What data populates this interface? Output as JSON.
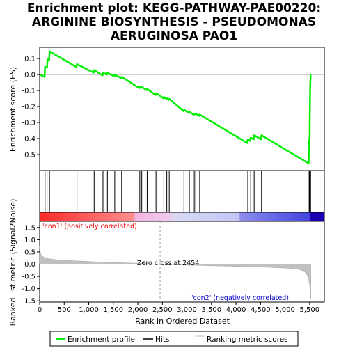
{
  "chart_data": {
    "type": "line",
    "title_lines": [
      "Enrichment plot: KEGG-PATHWAY-PAE00220:",
      "ARGININE BIOSYNTHESIS - PSEUDOMONAS",
      "AERUGINOSA PAO1"
    ],
    "xlabel": "Rank in Ordered Dataset",
    "ylabel_top": "Enrichment score (ES)",
    "ylabel_bottom": "Ranked list metric (Signal2Noise)",
    "xlim": [
      0,
      5800
    ],
    "x_ticks": [
      0,
      500,
      1000,
      1500,
      2000,
      2500,
      3000,
      3500,
      4000,
      4500,
      5000,
      5500
    ],
    "x_tick_labels": [
      "0",
      "500",
      "1,000",
      "1,500",
      "2,000",
      "2,500",
      "3,000",
      "3,500",
      "4,000",
      "4,500",
      "5,000",
      "5,500"
    ],
    "es_ylim": [
      -0.6,
      0.17
    ],
    "es_ticks": [
      0.1,
      0.0,
      -0.1,
      -0.2,
      -0.3,
      -0.4,
      -0.5
    ],
    "es_tick_labels": [
      "0.1",
      "0.0",
      "-0.1",
      "-0.2",
      "-0.3",
      "-0.4",
      "-0.5"
    ],
    "metric_ylim": [
      -1.55,
      1.75
    ],
    "metric_ticks": [
      1.5,
      1.0,
      0.5,
      0.0,
      -0.5,
      -1.0,
      -1.5
    ],
    "metric_tick_labels": [
      "1.5",
      "1.0",
      "0.5",
      "0.0",
      "-0.5",
      "-1.0",
      "-1.5"
    ],
    "hits": [
      110,
      150,
      200,
      760,
      1110,
      1290,
      1380,
      1530,
      1670,
      2040,
      2080,
      2190,
      2370,
      2390,
      2530,
      2590,
      2640,
      2940,
      3050,
      3150,
      3180,
      3260,
      4240,
      4300,
      4370,
      4520,
      5490,
      5500,
      5510,
      5520
    ],
    "enrichment_profile": {
      "x": [
        0,
        5,
        100,
        110,
        150,
        160,
        195,
        200,
        750,
        760,
        1100,
        1110,
        1280,
        1290,
        1370,
        1380,
        1520,
        1530,
        1660,
        1670,
        2030,
        2040,
        2070,
        2080,
        2180,
        2190,
        2360,
        2370,
        2380,
        2390,
        2520,
        2530,
        2580,
        2590,
        2630,
        2640,
        2930,
        2940,
        3040,
        3050,
        3140,
        3150,
        3170,
        3180,
        3250,
        3260,
        4230,
        4240,
        4290,
        4300,
        4360,
        4370,
        4510,
        4520,
        5480,
        5490,
        5500,
        5505,
        5510,
        5520
      ],
      "es": [
        0.0,
        0.0,
        -0.015,
        0.048,
        0.045,
        0.095,
        0.092,
        0.145,
        0.047,
        0.065,
        0.012,
        0.028,
        -0.005,
        0.012,
        0.0,
        0.01,
        -0.01,
        -0.002,
        -0.022,
        -0.014,
        -0.085,
        -0.078,
        -0.083,
        -0.078,
        -0.098,
        -0.09,
        -0.128,
        -0.12,
        -0.122,
        -0.118,
        -0.148,
        -0.14,
        -0.152,
        -0.145,
        -0.158,
        -0.152,
        -0.228,
        -0.22,
        -0.24,
        -0.232,
        -0.252,
        -0.244,
        -0.248,
        -0.244,
        -0.258,
        -0.25,
        -0.428,
        -0.405,
        -0.415,
        -0.395,
        -0.405,
        -0.38,
        -0.405,
        -0.38,
        -0.555,
        -0.41,
        -0.4,
        -0.21,
        -0.1,
        0.003
      ]
    },
    "metric_curve": {
      "x": [
        0,
        20,
        60,
        120,
        200,
        350,
        600,
        900,
        1200,
        1500,
        1800,
        2100,
        2454,
        2800,
        3200,
        3600,
        4000,
        4400,
        4800,
        5100,
        5300,
        5400,
        5450,
        5480,
        5500,
        5515,
        5525
      ],
      "y": [
        0.72,
        0.42,
        0.32,
        0.26,
        0.22,
        0.18,
        0.15,
        0.12,
        0.09,
        0.07,
        0.05,
        0.03,
        0.0,
        -0.03,
        -0.05,
        -0.07,
        -0.09,
        -0.11,
        -0.14,
        -0.17,
        -0.22,
        -0.32,
        -0.45,
        -0.62,
        -0.85,
        -1.15,
        -1.42
      ]
    },
    "zero_cross_rank": 2454,
    "zero_cross_label": "Zero cross at 2454",
    "pos_label": "'con1' (positively correlated)",
    "neg_label": "'con2' (negatively correlated)",
    "colors": {
      "enrichment": "#00ee00",
      "hits": "#000000",
      "metric_fill": "#c0c0c0",
      "pos_label": "#ee0000",
      "neg_label": "#0000cc"
    },
    "legend": {
      "placement": "bottom",
      "items": [
        {
          "label": "Enrichment profile",
          "style": "line",
          "color": "#00ee00"
        },
        {
          "label": "Hits",
          "style": "line",
          "color": "#000000"
        },
        {
          "label": "Ranking metric scores",
          "style": "line",
          "color": "#c0c0c0"
        }
      ]
    }
  }
}
